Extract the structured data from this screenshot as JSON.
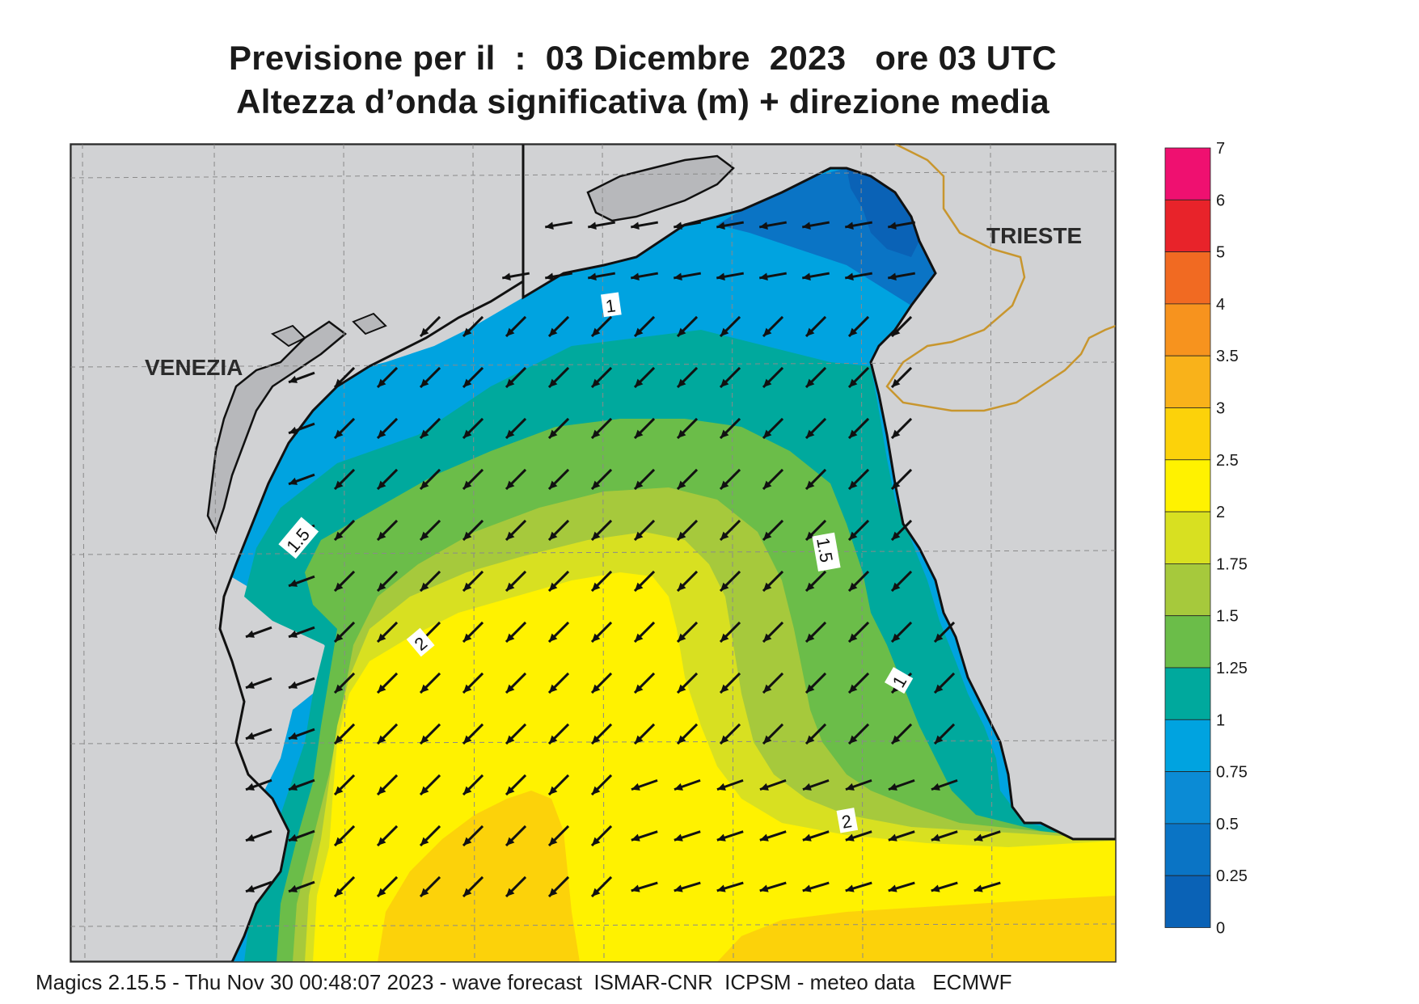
{
  "title": {
    "line1": "Previsione per il  :  03 Dicembre  2023   ore 03 UTC",
    "line2": "Altezza d’onda significativa (m) + direzione media"
  },
  "map": {
    "cities": [
      {
        "name": "VENEZIA"
      },
      {
        "name": "TRIESTE"
      }
    ],
    "contour_labels": [
      "1",
      "1.5",
      "1.5",
      "2",
      "2",
      "1"
    ],
    "land_color": "#d1d2d4",
    "coast_color": "#111111",
    "border_color": "#c8962e"
  },
  "colorbar": {
    "levels": [
      "7",
      "6",
      "5",
      "4",
      "3.5",
      "3",
      "2.5",
      "2",
      "1.75",
      "1.5",
      "1.25",
      "1",
      "0.75",
      "0.5",
      "0.25",
      "0"
    ],
    "colors": [
      "#ef1070",
      "#e8232a",
      "#f16a22",
      "#f7931e",
      "#f9b21a",
      "#fcd20a",
      "#fff200",
      "#d8e021",
      "#a6c93c",
      "#6bbd49",
      "#00a99d",
      "#00a3e0",
      "#0b8bd5",
      "#0a74c5",
      "#0a62b6"
    ]
  },
  "footer": "Magics 2.15.5 - Thu Nov 30 00:48:07 2023 - wave forecast  ISMAR-CNR  ICPSM - meteo data   ECMWF"
}
